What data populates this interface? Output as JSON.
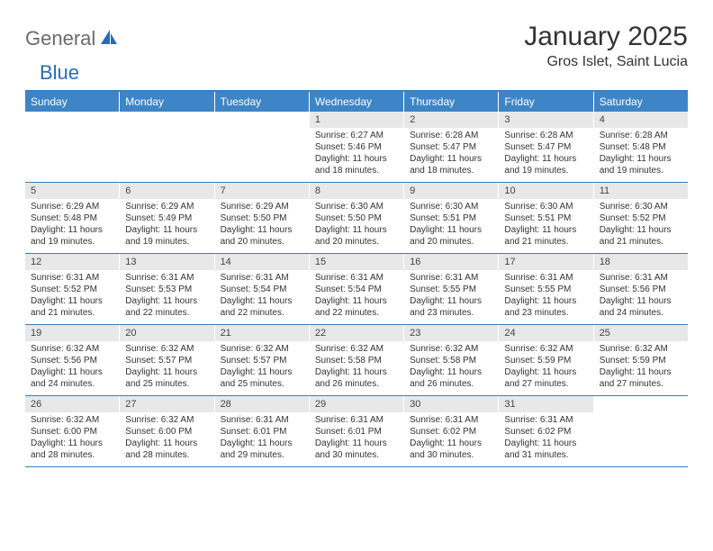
{
  "logo": {
    "general": "General",
    "blue": "Blue"
  },
  "title": "January 2025",
  "location": "Gros Islet, Saint Lucia",
  "colors": {
    "header_bar": "#3d85c6",
    "border": "#3a7fc0",
    "day_num_bg": "#e8e8e8",
    "logo_gray": "#6b6b6b",
    "logo_blue": "#2a6bb0"
  },
  "weekdays": [
    "Sunday",
    "Monday",
    "Tuesday",
    "Wednesday",
    "Thursday",
    "Friday",
    "Saturday"
  ],
  "weeks": [
    [
      {
        "day": "",
        "lines": []
      },
      {
        "day": "",
        "lines": []
      },
      {
        "day": "",
        "lines": []
      },
      {
        "day": "1",
        "lines": [
          "Sunrise: 6:27 AM",
          "Sunset: 5:46 PM",
          "Daylight: 11 hours and 18 minutes."
        ]
      },
      {
        "day": "2",
        "lines": [
          "Sunrise: 6:28 AM",
          "Sunset: 5:47 PM",
          "Daylight: 11 hours and 18 minutes."
        ]
      },
      {
        "day": "3",
        "lines": [
          "Sunrise: 6:28 AM",
          "Sunset: 5:47 PM",
          "Daylight: 11 hours and 19 minutes."
        ]
      },
      {
        "day": "4",
        "lines": [
          "Sunrise: 6:28 AM",
          "Sunset: 5:48 PM",
          "Daylight: 11 hours and 19 minutes."
        ]
      }
    ],
    [
      {
        "day": "5",
        "lines": [
          "Sunrise: 6:29 AM",
          "Sunset: 5:48 PM",
          "Daylight: 11 hours and 19 minutes."
        ]
      },
      {
        "day": "6",
        "lines": [
          "Sunrise: 6:29 AM",
          "Sunset: 5:49 PM",
          "Daylight: 11 hours and 19 minutes."
        ]
      },
      {
        "day": "7",
        "lines": [
          "Sunrise: 6:29 AM",
          "Sunset: 5:50 PM",
          "Daylight: 11 hours and 20 minutes."
        ]
      },
      {
        "day": "8",
        "lines": [
          "Sunrise: 6:30 AM",
          "Sunset: 5:50 PM",
          "Daylight: 11 hours and 20 minutes."
        ]
      },
      {
        "day": "9",
        "lines": [
          "Sunrise: 6:30 AM",
          "Sunset: 5:51 PM",
          "Daylight: 11 hours and 20 minutes."
        ]
      },
      {
        "day": "10",
        "lines": [
          "Sunrise: 6:30 AM",
          "Sunset: 5:51 PM",
          "Daylight: 11 hours and 21 minutes."
        ]
      },
      {
        "day": "11",
        "lines": [
          "Sunrise: 6:30 AM",
          "Sunset: 5:52 PM",
          "Daylight: 11 hours and 21 minutes."
        ]
      }
    ],
    [
      {
        "day": "12",
        "lines": [
          "Sunrise: 6:31 AM",
          "Sunset: 5:52 PM",
          "Daylight: 11 hours and 21 minutes."
        ]
      },
      {
        "day": "13",
        "lines": [
          "Sunrise: 6:31 AM",
          "Sunset: 5:53 PM",
          "Daylight: 11 hours and 22 minutes."
        ]
      },
      {
        "day": "14",
        "lines": [
          "Sunrise: 6:31 AM",
          "Sunset: 5:54 PM",
          "Daylight: 11 hours and 22 minutes."
        ]
      },
      {
        "day": "15",
        "lines": [
          "Sunrise: 6:31 AM",
          "Sunset: 5:54 PM",
          "Daylight: 11 hours and 22 minutes."
        ]
      },
      {
        "day": "16",
        "lines": [
          "Sunrise: 6:31 AM",
          "Sunset: 5:55 PM",
          "Daylight: 11 hours and 23 minutes."
        ]
      },
      {
        "day": "17",
        "lines": [
          "Sunrise: 6:31 AM",
          "Sunset: 5:55 PM",
          "Daylight: 11 hours and 23 minutes."
        ]
      },
      {
        "day": "18",
        "lines": [
          "Sunrise: 6:31 AM",
          "Sunset: 5:56 PM",
          "Daylight: 11 hours and 24 minutes."
        ]
      }
    ],
    [
      {
        "day": "19",
        "lines": [
          "Sunrise: 6:32 AM",
          "Sunset: 5:56 PM",
          "Daylight: 11 hours and 24 minutes."
        ]
      },
      {
        "day": "20",
        "lines": [
          "Sunrise: 6:32 AM",
          "Sunset: 5:57 PM",
          "Daylight: 11 hours and 25 minutes."
        ]
      },
      {
        "day": "21",
        "lines": [
          "Sunrise: 6:32 AM",
          "Sunset: 5:57 PM",
          "Daylight: 11 hours and 25 minutes."
        ]
      },
      {
        "day": "22",
        "lines": [
          "Sunrise: 6:32 AM",
          "Sunset: 5:58 PM",
          "Daylight: 11 hours and 26 minutes."
        ]
      },
      {
        "day": "23",
        "lines": [
          "Sunrise: 6:32 AM",
          "Sunset: 5:58 PM",
          "Daylight: 11 hours and 26 minutes."
        ]
      },
      {
        "day": "24",
        "lines": [
          "Sunrise: 6:32 AM",
          "Sunset: 5:59 PM",
          "Daylight: 11 hours and 27 minutes."
        ]
      },
      {
        "day": "25",
        "lines": [
          "Sunrise: 6:32 AM",
          "Sunset: 5:59 PM",
          "Daylight: 11 hours and 27 minutes."
        ]
      }
    ],
    [
      {
        "day": "26",
        "lines": [
          "Sunrise: 6:32 AM",
          "Sunset: 6:00 PM",
          "Daylight: 11 hours and 28 minutes."
        ]
      },
      {
        "day": "27",
        "lines": [
          "Sunrise: 6:32 AM",
          "Sunset: 6:00 PM",
          "Daylight: 11 hours and 28 minutes."
        ]
      },
      {
        "day": "28",
        "lines": [
          "Sunrise: 6:31 AM",
          "Sunset: 6:01 PM",
          "Daylight: 11 hours and 29 minutes."
        ]
      },
      {
        "day": "29",
        "lines": [
          "Sunrise: 6:31 AM",
          "Sunset: 6:01 PM",
          "Daylight: 11 hours and 30 minutes."
        ]
      },
      {
        "day": "30",
        "lines": [
          "Sunrise: 6:31 AM",
          "Sunset: 6:02 PM",
          "Daylight: 11 hours and 30 minutes."
        ]
      },
      {
        "day": "31",
        "lines": [
          "Sunrise: 6:31 AM",
          "Sunset: 6:02 PM",
          "Daylight: 11 hours and 31 minutes."
        ]
      },
      {
        "day": "",
        "lines": []
      }
    ]
  ]
}
